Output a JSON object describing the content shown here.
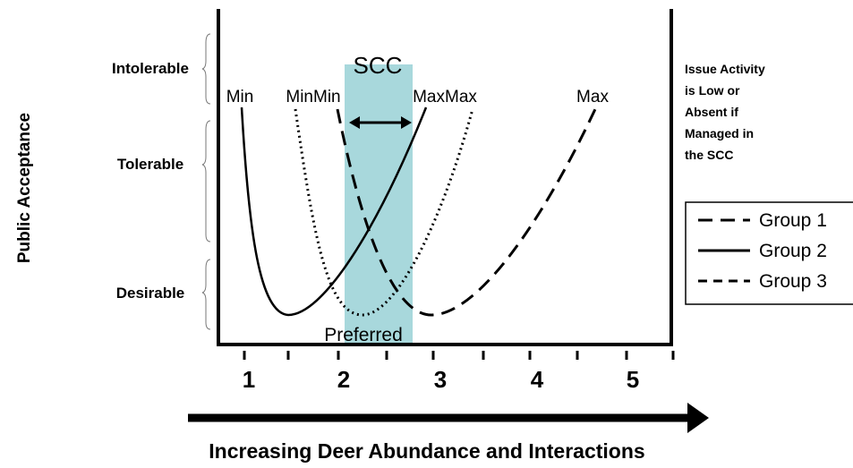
{
  "title": "Increasing Deer Abundance and Interactions",
  "y_axis_label": "Public Acceptance",
  "zones": [
    "Intolerable",
    "Tolerable",
    "Desirable"
  ],
  "x_ticks": [
    "1",
    "2",
    "3",
    "4",
    "5"
  ],
  "scc_label": "SCC",
  "preferred_label": "Preferred",
  "curve_labels": [
    "Min",
    "MinMin",
    "MaxMax",
    "Max"
  ],
  "note": [
    "Issue Activity",
    "is Low or",
    "Absent if",
    "Managed in",
    "the SCC"
  ],
  "legend": [
    "Group 1",
    "Group 2",
    "Group 3"
  ]
}
